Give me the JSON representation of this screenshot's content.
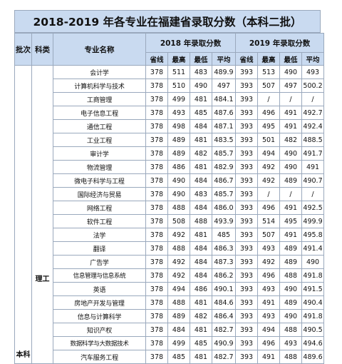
{
  "title": "2018-2019 年各专业在福建省录取分数（本科二批）",
  "headers": {
    "batch": "批次",
    "category": "科类",
    "major": "专业名称",
    "y2018": "2018 年录取分数",
    "y2019": "2019 年录取分数",
    "sub": [
      "省线",
      "最高",
      "最低",
      "平均",
      "省线",
      "最高",
      "最低",
      "平均"
    ]
  },
  "group": {
    "batch": "本科",
    "category": "理工"
  },
  "rows": [
    [
      "会计学",
      "378",
      "511",
      "483",
      "489.9",
      "393",
      "513",
      "490",
      "493"
    ],
    [
      "计算机科学与技术",
      "378",
      "510",
      "490",
      "497",
      "393",
      "507",
      "497",
      "500.2"
    ],
    [
      "工商管理",
      "378",
      "499",
      "481",
      "484.1",
      "393",
      "/",
      "/",
      "/"
    ],
    [
      "电子信息工程",
      "378",
      "493",
      "485",
      "487.6",
      "393",
      "496",
      "491",
      "492.7"
    ],
    [
      "通信工程",
      "378",
      "498",
      "484",
      "487.1",
      "393",
      "495",
      "491",
      "492.4"
    ],
    [
      "工业工程",
      "378",
      "489",
      "481",
      "483.5",
      "393",
      "501",
      "482",
      "488.5"
    ],
    [
      "审计学",
      "378",
      "489",
      "482",
      "485.7",
      "393",
      "494",
      "490",
      "491.7"
    ],
    [
      "物流管理",
      "378",
      "486",
      "481",
      "482.9",
      "393",
      "492",
      "490",
      "491"
    ],
    [
      "微电子科学与工程",
      "378",
      "490",
      "484",
      "486.7",
      "393",
      "492",
      "489",
      "490.7"
    ],
    [
      "国际经济与贸易",
      "378",
      "490",
      "483",
      "485.7",
      "393",
      "/",
      "/",
      "/"
    ],
    [
      "网络工程",
      "378",
      "488",
      "484",
      "486.0",
      "393",
      "496",
      "491",
      "492.5"
    ],
    [
      "软件工程",
      "378",
      "508",
      "488",
      "493.9",
      "393",
      "514",
      "495",
      "499.9"
    ],
    [
      "法学",
      "378",
      "492",
      "481",
      "485",
      "393",
      "507",
      "491",
      "495.8"
    ],
    [
      "翻译",
      "378",
      "488",
      "484",
      "486.3",
      "393",
      "493",
      "489",
      "491.4"
    ],
    [
      "广告学",
      "378",
      "492",
      "484",
      "487.3",
      "393",
      "492",
      "489",
      "490"
    ],
    [
      "信息管理与信息系统",
      "378",
      "492",
      "484",
      "486.2",
      "393",
      "496",
      "488",
      "491.8"
    ],
    [
      "英语",
      "378",
      "494",
      "486",
      "490.1",
      "393",
      "493",
      "490",
      "491.5"
    ],
    [
      "房地产开发与管理",
      "378",
      "488",
      "481",
      "484.6",
      "393",
      "491",
      "489",
      "490.4"
    ],
    [
      "信息与计算科学",
      "378",
      "489",
      "482",
      "486.4",
      "393",
      "493",
      "490",
      "491.8"
    ],
    [
      "知识产权",
      "378",
      "484",
      "481",
      "482.7",
      "393",
      "494",
      "488",
      "490.5"
    ],
    [
      "数据科学与大数据技术",
      "378",
      "499",
      "485",
      "490.9",
      "393",
      "496",
      "493",
      "494.6"
    ],
    [
      "汽车服务工程",
      "378",
      "485",
      "481",
      "482.7",
      "393",
      "491",
      "488",
      "489.6"
    ]
  ]
}
